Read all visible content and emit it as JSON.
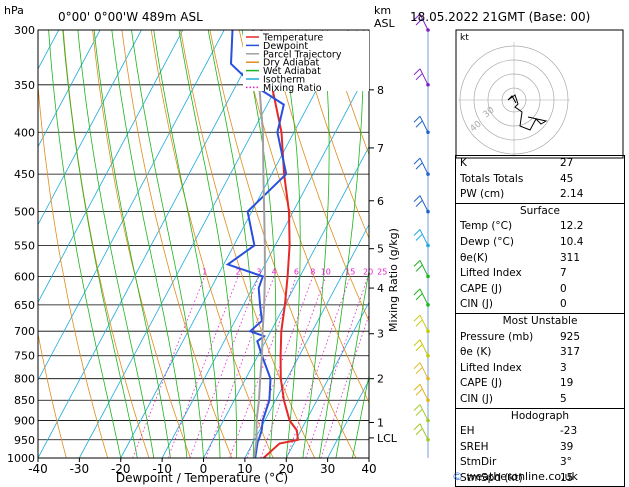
{
  "header": {
    "location": "0°00' 0°00'W 489m ASL",
    "datetime": "18.05.2022 21GMT (Base: 00)",
    "hpa_unit": "hPa",
    "km_unit": "km",
    "km_unit2": "ASL"
  },
  "chart_data": {
    "type": "skew-t",
    "xlabel": "Dewpoint / Temperature (°C)",
    "ylabel_right": "Mixing Ratio (g/kg)",
    "x_ticks": [
      -40,
      -30,
      -20,
      -10,
      0,
      10,
      20,
      30,
      40
    ],
    "pressure_levels": [
      300,
      350,
      400,
      450,
      500,
      550,
      600,
      650,
      700,
      750,
      800,
      850,
      900,
      950,
      1000
    ],
    "xlim": [
      -40,
      40
    ],
    "ylim_hpa": [
      1000,
      300
    ],
    "km_ticks": [
      {
        "label": "8",
        "p": 355
      },
      {
        "label": "7",
        "p": 418
      },
      {
        "label": "6",
        "p": 485
      },
      {
        "label": "5",
        "p": 555
      },
      {
        "label": "4",
        "p": 620
      },
      {
        "label": "3",
        "p": 705
      },
      {
        "label": "2",
        "p": 800
      },
      {
        "label": "1",
        "p": 905
      },
      {
        "label": "LCL",
        "p": 945
      }
    ],
    "mixing_ratio_labels": [
      "1",
      "2",
      "3",
      "4",
      "6",
      "8",
      "10",
      "15",
      "20",
      "25"
    ],
    "legend": [
      {
        "name": "Temperature",
        "color": "#e62828"
      },
      {
        "name": "Dewpoint",
        "color": "#2850dc"
      },
      {
        "name": "Parcel Trajectory",
        "color": "#a0a0a0"
      },
      {
        "name": "Dry Adiabat",
        "color": "#e08c1e"
      },
      {
        "name": "Wet Adiabat",
        "color": "#1eb41e"
      },
      {
        "name": "Isotherm",
        "color": "#1eaadc"
      },
      {
        "name": "Mixing Ratio",
        "color": "#e61ec8"
      }
    ],
    "series": [
      {
        "name": "Temperature",
        "points": [
          [
            1000,
            14.5
          ],
          [
            960,
            16.5
          ],
          [
            950,
            20.5
          ],
          [
            925,
            19.0
          ],
          [
            900,
            16.0
          ],
          [
            850,
            12.0
          ],
          [
            800,
            8.5
          ],
          [
            750,
            5.5
          ],
          [
            700,
            2.5
          ],
          [
            650,
            0.0
          ],
          [
            600,
            -3.0
          ],
          [
            550,
            -6.5
          ],
          [
            500,
            -11.0
          ],
          [
            450,
            -17.0
          ],
          [
            400,
            -23.0
          ],
          [
            350,
            -31.5
          ],
          [
            300,
            -41.0
          ]
        ]
      },
      {
        "name": "Dewpoint",
        "points": [
          [
            1000,
            12.5
          ],
          [
            955,
            11.0
          ],
          [
            950,
            11.0
          ],
          [
            925,
            10.5
          ],
          [
            900,
            9.5
          ],
          [
            850,
            8.5
          ],
          [
            800,
            6.0
          ],
          [
            750,
            1.0
          ],
          [
            720,
            -2.0
          ],
          [
            710,
            -1.0
          ],
          [
            700,
            -5.0
          ],
          [
            680,
            -3.5
          ],
          [
            650,
            -6.0
          ],
          [
            620,
            -8.5
          ],
          [
            600,
            -9.0
          ],
          [
            580,
            -19.0
          ],
          [
            550,
            -15.0
          ],
          [
            500,
            -21.0
          ],
          [
            450,
            -16.5
          ],
          [
            400,
            -24.0
          ],
          [
            370,
            -26.0
          ],
          [
            350,
            -36.0
          ],
          [
            330,
            -44.0
          ],
          [
            300,
            -48.0
          ]
        ]
      },
      {
        "name": "Parcel Trajectory",
        "points": [
          [
            1000,
            12.2
          ],
          [
            950,
            10.5
          ],
          [
            900,
            8.0
          ],
          [
            850,
            6.0
          ],
          [
            800,
            3.5
          ],
          [
            750,
            1.0
          ],
          [
            700,
            -2.0
          ],
          [
            650,
            -5.0
          ],
          [
            600,
            -8.5
          ],
          [
            550,
            -12.5
          ],
          [
            500,
            -17.0
          ],
          [
            450,
            -22.0
          ],
          [
            400,
            -27.5
          ],
          [
            350,
            -34.5
          ],
          [
            300,
            -43.0
          ]
        ]
      }
    ]
  },
  "hodograph": {
    "label": "kt",
    "ring_labels": [
      "40",
      "30"
    ]
  },
  "indices": {
    "k_label": "K",
    "k": "27",
    "tt_label": "Totals Totals",
    "tt": "45",
    "pw_label": "PW (cm)",
    "pw": "2.14"
  },
  "surface": {
    "title": "Surface",
    "temp_label": "Temp (°C)",
    "temp": "12.2",
    "dewp_label": "Dewp (°C)",
    "dewp": "10.4",
    "theta_label": "θe(K)",
    "theta": "311",
    "li_label": "Lifted Index",
    "li": "7",
    "cape_label": "CAPE (J)",
    "cape": "0",
    "cin_label": "CIN (J)",
    "cin": "0"
  },
  "most_unstable": {
    "title": "Most Unstable",
    "pres_label": "Pressure (mb)",
    "pres": "925",
    "theta_label": "θe (K)",
    "theta": "317",
    "li_label": "Lifted Index",
    "li": "3",
    "cape_label": "CAPE (J)",
    "cape": "19",
    "cin_label": "CIN (J)",
    "cin": "5"
  },
  "hodograph_table": {
    "title": "Hodograph",
    "eh_label": "EH",
    "eh": "-23",
    "srh_label": "SREH",
    "srh": "39",
    "dir_label": "StmDir",
    "dir": "3°",
    "spd_label": "StmSpd (kt)",
    "spd": "15"
  },
  "footer": {
    "copyright": "©",
    "site": "weatheronline.co.uk"
  }
}
